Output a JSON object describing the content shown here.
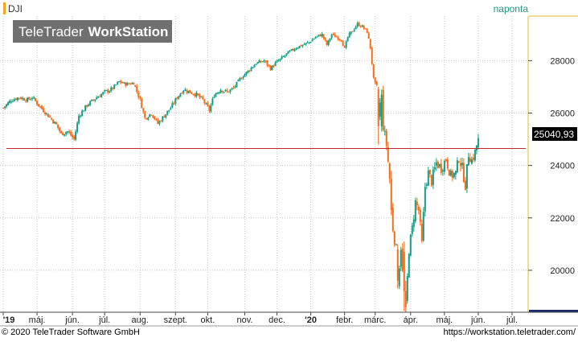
{
  "watermark": "TeleTrader WorkStation",
  "watermark_parts": {
    "brand": "TeleTrader",
    "product": "WorkStation"
  },
  "footer": {
    "copyright": "© 2020 TeleTrader Software GmbH",
    "url": "https://workstation.teletrader.com/"
  },
  "colors": {
    "up": "#1a9a80",
    "down": "#f26b1d",
    "reference_line": "#c0282b",
    "symbol_marker": "#f5a623",
    "period_text": "#1a9a80",
    "right_edge": "#e0b830",
    "bottom_bar": "#1c2a6e",
    "grid": "#c8c8c8"
  },
  "chart_data": {
    "type": "candlestick",
    "symbol": "DJI",
    "period": "naponta",
    "last_price_label": "25040,93",
    "ylim": [
      18400,
      29700
    ],
    "y_ticks": [
      20000,
      22000,
      24000,
      26000,
      28000
    ],
    "y_tick_labels": [
      "20000",
      "22000",
      "24000",
      "26000",
      "28000"
    ],
    "reference_level": 24650,
    "x_ticks": [
      {
        "label": "'19",
        "bold": true,
        "t": 0
      },
      {
        "label": "máj.",
        "bold": false,
        "t": 21
      },
      {
        "label": "jún.",
        "bold": false,
        "t": 43
      },
      {
        "label": "júl.",
        "bold": false,
        "t": 63
      },
      {
        "label": "aug.",
        "bold": false,
        "t": 85
      },
      {
        "label": "szept.",
        "bold": false,
        "t": 107
      },
      {
        "label": "okt.",
        "bold": false,
        "t": 127
      },
      {
        "label": "nov.",
        "bold": false,
        "t": 150
      },
      {
        "label": "dec.",
        "bold": false,
        "t": 170
      },
      {
        "label": "'20",
        "bold": true,
        "t": 191
      },
      {
        "label": "febr.",
        "bold": false,
        "t": 212
      },
      {
        "label": "márc.",
        "bold": false,
        "t": 231
      },
      {
        "label": "ápr.",
        "bold": false,
        "t": 253
      },
      {
        "label": "máj.",
        "bold": false,
        "t": 274
      },
      {
        "label": "jún.",
        "bold": false,
        "t": 295
      },
      {
        "label": "júl.",
        "bold": false,
        "t": 316
      }
    ],
    "x_range": [
      -2,
      326
    ],
    "close_path": [
      [
        0,
        26200
      ],
      [
        5,
        26500
      ],
      [
        10,
        26600
      ],
      [
        15,
        26500
      ],
      [
        18,
        26600
      ],
      [
        22,
        26300
      ],
      [
        28,
        25900
      ],
      [
        33,
        25550
      ],
      [
        36,
        25200
      ],
      [
        40,
        25300
      ],
      [
        44,
        25000
      ],
      [
        47,
        25900
      ],
      [
        52,
        26300
      ],
      [
        58,
        26600
      ],
      [
        63,
        26800
      ],
      [
        67,
        26900
      ],
      [
        72,
        27200
      ],
      [
        76,
        27100
      ],
      [
        81,
        27150
      ],
      [
        85,
        26500
      ],
      [
        88,
        25800
      ],
      [
        92,
        26000
      ],
      [
        96,
        25600
      ],
      [
        100,
        25900
      ],
      [
        104,
        26200
      ],
      [
        108,
        26600
      ],
      [
        112,
        26900
      ],
      [
        116,
        26800
      ],
      [
        120,
        26700
      ],
      [
        124,
        26500
      ],
      [
        128,
        26100
      ],
      [
        131,
        26700
      ],
      [
        135,
        26900
      ],
      [
        139,
        26800
      ],
      [
        143,
        26950
      ],
      [
        147,
        27300
      ],
      [
        152,
        27600
      ],
      [
        157,
        27900
      ],
      [
        162,
        28000
      ],
      [
        166,
        27700
      ],
      [
        169,
        27900
      ],
      [
        173,
        28100
      ],
      [
        177,
        28300
      ],
      [
        182,
        28500
      ],
      [
        186,
        28600
      ],
      [
        190,
        28700
      ],
      [
        194,
        28900
      ],
      [
        198,
        29000
      ],
      [
        201,
        28600
      ],
      [
        204,
        29000
      ],
      [
        207,
        28900
      ],
      [
        210,
        28800
      ],
      [
        212,
        28450
      ],
      [
        214,
        28900
      ],
      [
        217,
        29150
      ],
      [
        220,
        29400
      ],
      [
        223,
        29300
      ],
      [
        226,
        29100
      ],
      [
        228,
        28500
      ],
      [
        230,
        27300
      ],
      [
        232,
        26900
      ],
      [
        233,
        25900
      ],
      [
        235,
        26800
      ],
      [
        236,
        25500
      ],
      [
        238,
        24800
      ],
      [
        240,
        23500
      ],
      [
        241,
        22400
      ],
      [
        242,
        21600
      ],
      [
        244,
        20800
      ],
      [
        245,
        19500
      ],
      [
        247,
        20900
      ],
      [
        248,
        19900
      ],
      [
        249,
        19200
      ],
      [
        250,
        18600
      ],
      [
        252,
        20800
      ],
      [
        254,
        21600
      ],
      [
        256,
        22600
      ],
      [
        258,
        22300
      ],
      [
        260,
        21000
      ],
      [
        262,
        23200
      ],
      [
        264,
        23700
      ],
      [
        266,
        23400
      ],
      [
        269,
        24100
      ],
      [
        272,
        23900
      ],
      [
        275,
        24250
      ],
      [
        278,
        23600
      ],
      [
        281,
        23700
      ],
      [
        283,
        24300
      ],
      [
        285,
        23900
      ],
      [
        287,
        23250
      ],
      [
        289,
        24450
      ],
      [
        291,
        24200
      ],
      [
        293,
        24500
      ],
      [
        295,
        25040
      ]
    ],
    "spike_bars": [
      {
        "t": 249,
        "open": 20700,
        "high": 21100,
        "low": 18450,
        "close": 19200,
        "up": false
      },
      {
        "t": 250,
        "open": 19200,
        "high": 19600,
        "low": 18400,
        "close": 18600,
        "up": false
      },
      {
        "t": 245,
        "open": 20800,
        "high": 21000,
        "low": 19300,
        "close": 19600,
        "up": false
      },
      {
        "t": 241,
        "open": 23500,
        "high": 23800,
        "low": 22100,
        "close": 22300,
        "up": false
      },
      {
        "t": 233,
        "open": 26900,
        "high": 27000,
        "low": 24800,
        "close": 25500,
        "up": false
      },
      {
        "t": 235,
        "open": 25500,
        "high": 26900,
        "low": 25300,
        "close": 26700,
        "up": true
      },
      {
        "t": 295,
        "open": 24700,
        "high": 25200,
        "low": 24600,
        "close": 25040,
        "up": true
      }
    ]
  }
}
